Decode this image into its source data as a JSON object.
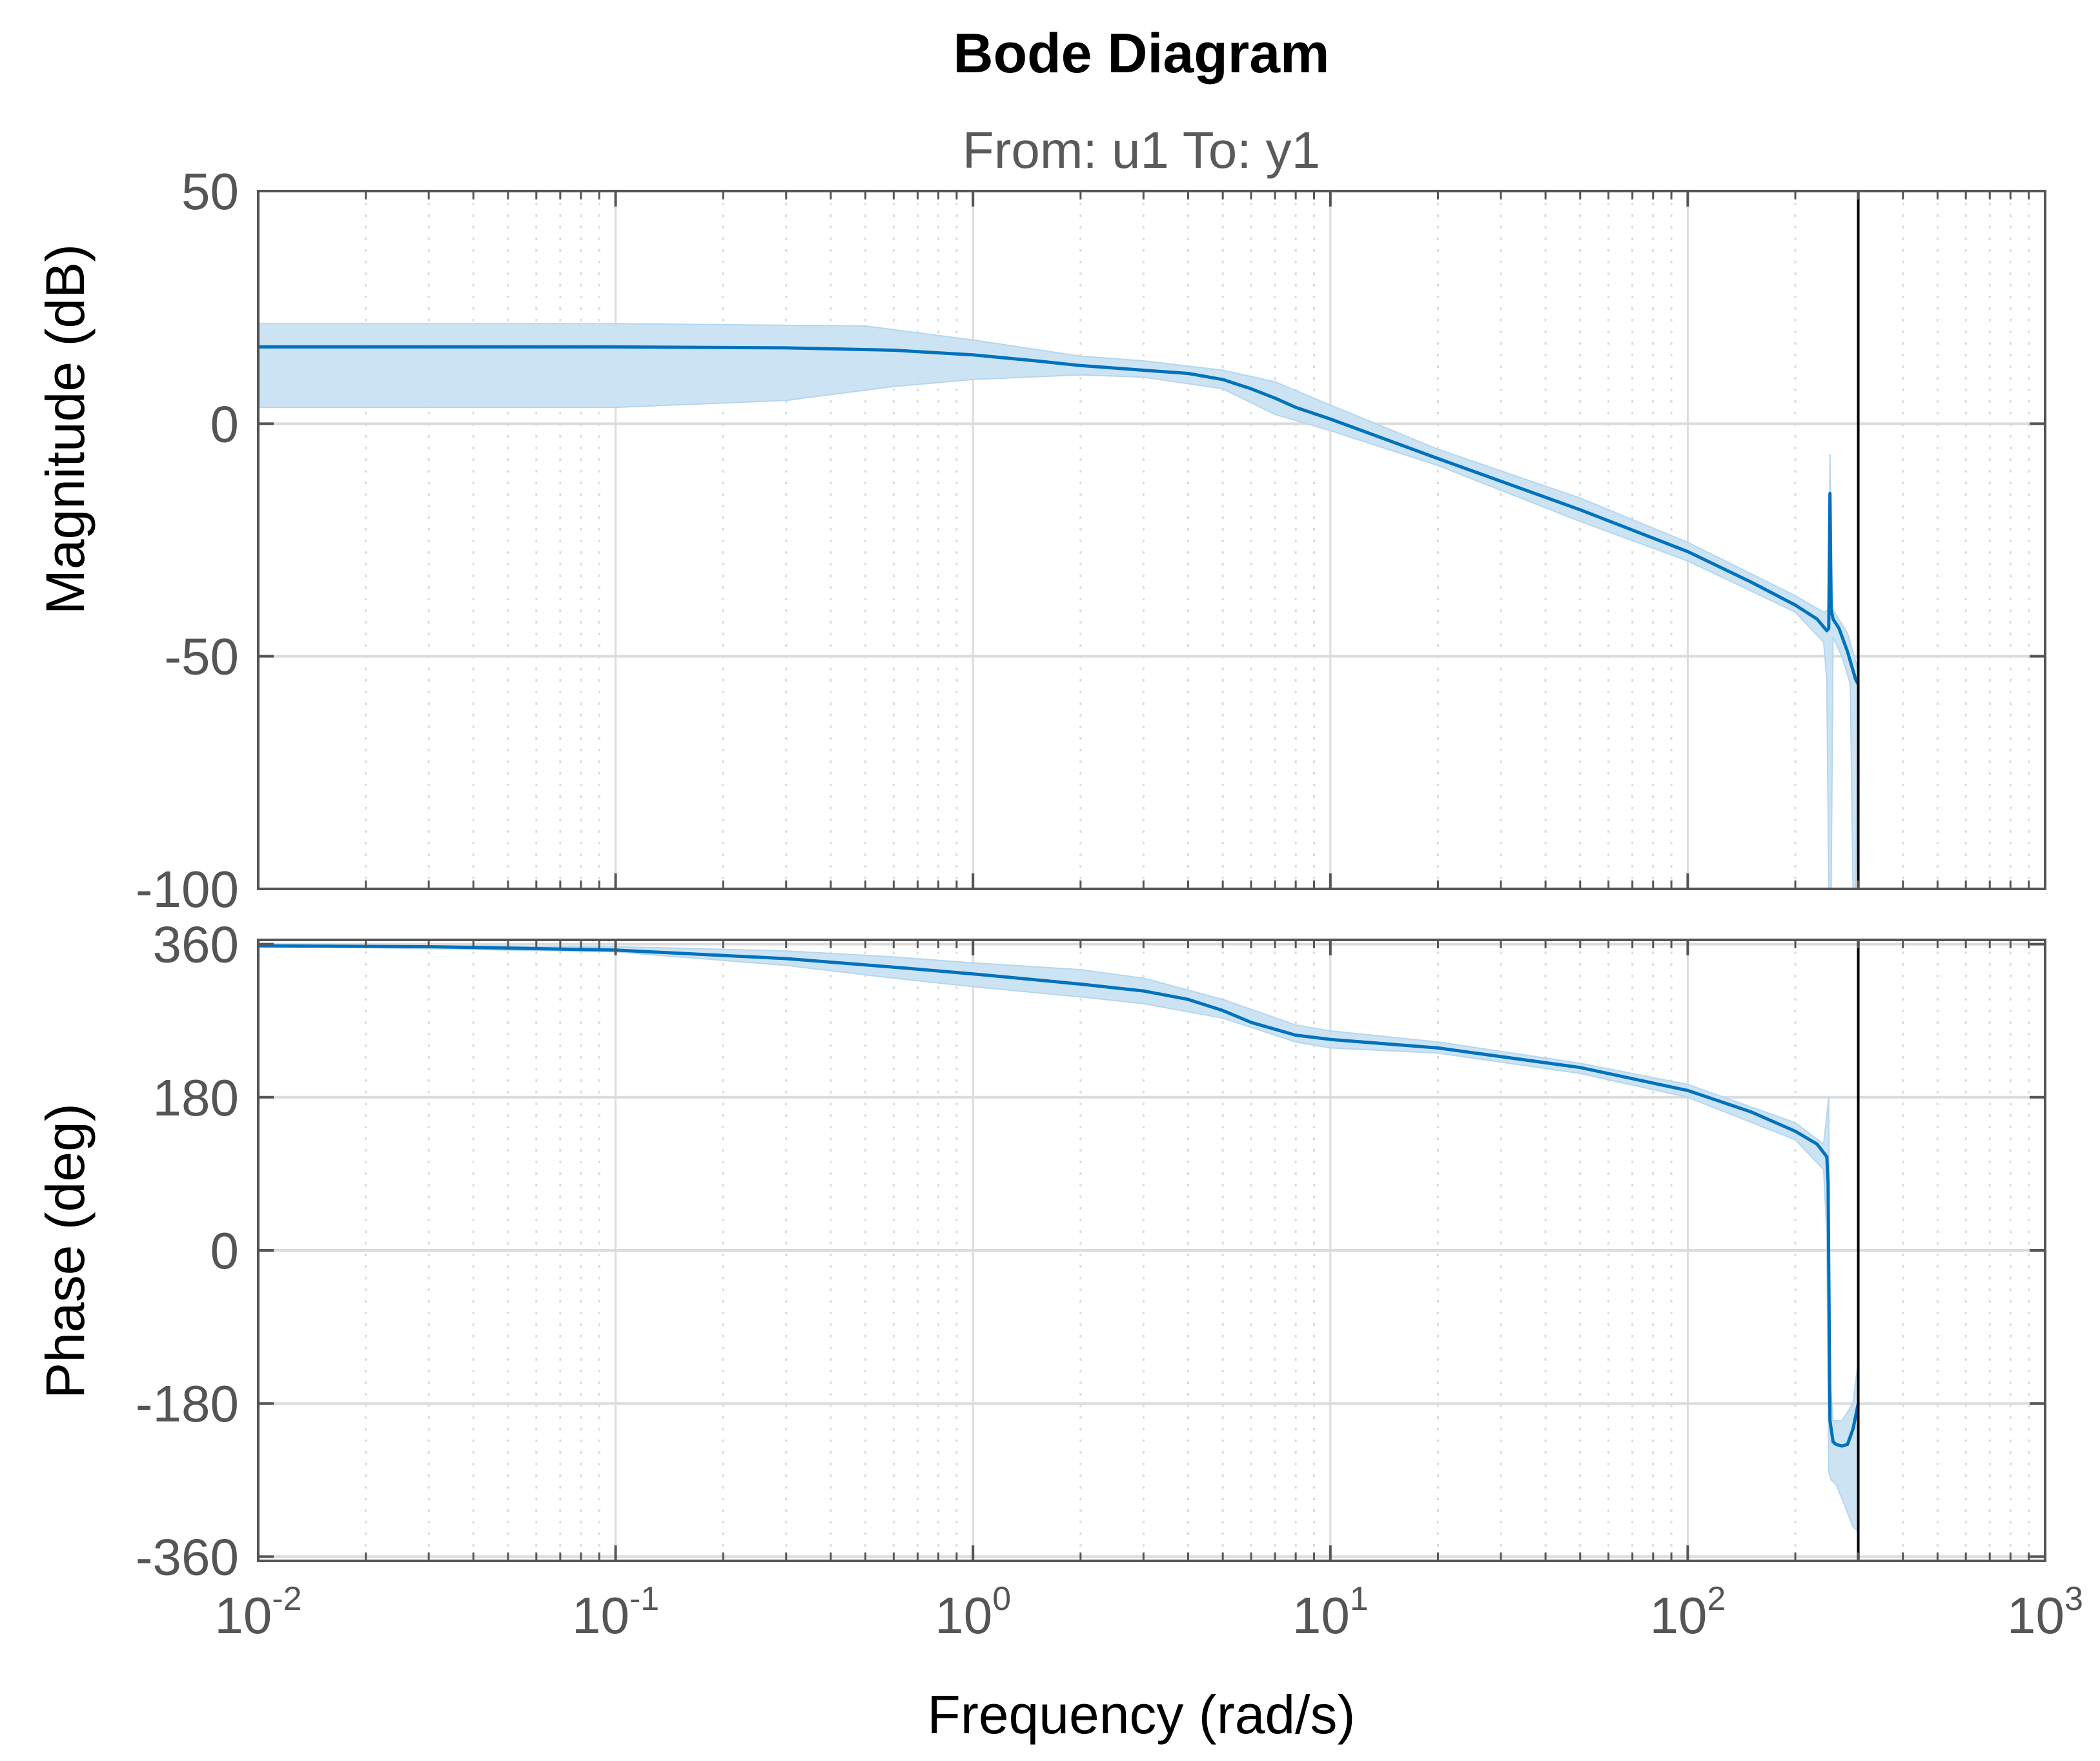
{
  "chart_data": {
    "type": "line",
    "title": "Bode Diagram",
    "subtitle": "From: u1  To: y1",
    "xlabel": "Frequency  (rad/s)",
    "xscale": "log",
    "xlim": [
      0.01,
      1000
    ],
    "x_ticks": [
      {
        "base": "10",
        "exp": "-2"
      },
      {
        "base": "10",
        "exp": "-1"
      },
      {
        "base": "10",
        "exp": "0"
      },
      {
        "base": "10",
        "exp": "1"
      },
      {
        "base": "10",
        "exp": "2"
      },
      {
        "base": "10",
        "exp": "3"
      }
    ],
    "vertical_marker_x": 300,
    "colors": {
      "line": "#0072bd",
      "band": "#c9e2f3",
      "grid": "#dcdcdc",
      "axis": "#555555"
    },
    "subplots": [
      {
        "name": "magnitude",
        "ylabel": "Magnitude (dB)",
        "ylim": [
          -100,
          50
        ],
        "y_ticks": [
          "50",
          "0",
          "-50",
          "-100"
        ],
        "y_tick_values": [
          50,
          0,
          -50,
          -100
        ],
        "series": [
          {
            "name": "nominal",
            "x": [
              0.01,
              0.03,
              0.1,
              0.3,
              0.6,
              1.0,
              1.5,
              2.0,
              3.0,
              4.0,
              5.0,
              6.0,
              7.0,
              8.0,
              10,
              20,
              50,
              100,
              150,
              200,
              230,
              245,
              248,
              250,
              252,
              255,
              265,
              280,
              295,
              300
            ],
            "y": [
              16.5,
              16.5,
              16.5,
              16.3,
              15.8,
              14.8,
              13.5,
              12.5,
              11.5,
              10.8,
              9.5,
              7.5,
              5.5,
              3.5,
              1.0,
              -7.5,
              -18.5,
              -27.5,
              -34.0,
              -39.0,
              -42.0,
              -44.5,
              -44.0,
              -15.0,
              -40.0,
              -42.0,
              -44.0,
              -49.0,
              -55.0,
              -56.0
            ]
          },
          {
            "name": "upper_bound",
            "x": [
              0.01,
              0.1,
              0.5,
              1.0,
              2.0,
              3.0,
              5.0,
              7.0,
              10,
              20,
              50,
              100,
              200,
              240,
              248,
              250,
              252,
              255,
              280,
              300
            ],
            "y": [
              21.5,
              21.5,
              21.0,
              18.0,
              14.5,
              13.5,
              11.5,
              9.0,
              4.0,
              -5.5,
              -16.0,
              -25.5,
              -37.0,
              -40.5,
              -40.0,
              -6.5,
              -38.0,
              -40.0,
              -45.0,
              -53.0
            ]
          },
          {
            "name": "lower_bound",
            "x": [
              0.01,
              0.1,
              0.3,
              0.6,
              1.0,
              2.0,
              3.0,
              5.0,
              7.0,
              10,
              20,
              50,
              100,
              200,
              240,
              245,
              248,
              252,
              255,
              270,
              285,
              290,
              295
            ],
            "y": [
              3.5,
              3.5,
              5.0,
              8.0,
              9.5,
              10.5,
              10.0,
              7.5,
              2.0,
              -1.5,
              -9.0,
              -21.0,
              -29.5,
              -40.5,
              -47.0,
              -55.0,
              -100,
              -100,
              -46.0,
              -50.0,
              -56.0,
              -100,
              -100
            ]
          }
        ]
      },
      {
        "name": "phase",
        "ylabel": "Phase (deg)",
        "ylim": [
          -365,
          365
        ],
        "y_ticks": [
          "360",
          "180",
          "0",
          "-180",
          "-360"
        ],
        "y_tick_values": [
          360,
          180,
          0,
          -180,
          -360
        ],
        "series": [
          {
            "name": "nominal",
            "x": [
              0.01,
              0.03,
              0.1,
              0.3,
              0.6,
              1.0,
              2.0,
              3.0,
              4.0,
              5.0,
              6.0,
              8.0,
              10,
              20,
              50,
              100,
              150,
              200,
              230,
              240,
              245,
              247,
              248,
              250,
              255,
              260,
              270,
              280,
              290,
              300
            ],
            "y": [
              358,
              357,
              353,
              343,
              333,
              325,
              313,
              305,
              295,
              282,
              268,
              253,
              248,
              238,
              215,
              188,
              163,
              140,
              125,
              115,
              110,
              80,
              -20,
              -200,
              -225,
              -228,
              -230,
              -228,
              -210,
              -180
            ]
          },
          {
            "name": "upper_bound",
            "x": [
              0.01,
              0.1,
              0.3,
              0.6,
              1.0,
              2.0,
              3.0,
              5.0,
              8.0,
              10,
              20,
              50,
              100,
              200,
              240,
              248,
              250,
              255,
              270,
              290,
              300
            ],
            "y": [
              359,
              357,
              352,
              345,
              338,
              330,
              320,
              295,
              265,
              258,
              245,
              220,
              195,
              150,
              125,
              180,
              -150,
              -200,
              -200,
              -180,
              -130
            ]
          },
          {
            "name": "lower_bound",
            "x": [
              0.01,
              0.1,
              0.3,
              0.6,
              1.0,
              2.0,
              3.0,
              5.0,
              8.0,
              10,
              20,
              50,
              100,
              200,
              240,
              245,
              248,
              252,
              260,
              275,
              290,
              300
            ],
            "y": [
              358,
              351,
              335,
              320,
              310,
              298,
              290,
              273,
              245,
              238,
              232,
              208,
              180,
              130,
              95,
              20,
              -260,
              -270,
              -275,
              -300,
              -325,
              -330
            ]
          }
        ]
      }
    ]
  }
}
